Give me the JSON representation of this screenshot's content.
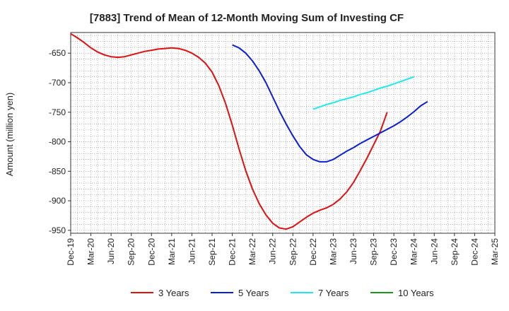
{
  "chart_data": {
    "type": "line",
    "title": "[7883]  Trend of Mean of 12-Month Moving Sum of Investing CF",
    "xlabel": "",
    "ylabel": "Amount (million yen)",
    "ylim": [
      -955,
      -615
    ],
    "yticks": [
      -650,
      -700,
      -750,
      -800,
      -850,
      -900,
      -950
    ],
    "x_tick_labels": [
      "Dec-19",
      "Mar-20",
      "Jun-20",
      "Sep-20",
      "Dec-20",
      "Mar-21",
      "Jun-21",
      "Sep-21",
      "Dec-21",
      "Mar-22",
      "Jun-22",
      "Sep-22",
      "Dec-22",
      "Mar-23",
      "Jun-23",
      "Sep-23",
      "Dec-23",
      "Mar-24",
      "Jun-24",
      "Sep-24",
      "Dec-24",
      "Mar-25"
    ],
    "grid": true,
    "legend_position": "bottom",
    "series": [
      {
        "name": "3 Years",
        "color": "#e01010",
        "start_index": 0,
        "values": [
          -617,
          -624,
          -632,
          -641,
          -648,
          -653,
          -656,
          -657,
          -656,
          -653,
          -650,
          -647,
          -645,
          -643,
          -642,
          -641,
          -642,
          -645,
          -650,
          -657,
          -667,
          -682,
          -705,
          -735,
          -772,
          -812,
          -849,
          -880,
          -905,
          -924,
          -938,
          -946,
          -948,
          -944,
          -936,
          -928,
          -921,
          -916,
          -912,
          -906,
          -897,
          -885,
          -869,
          -849,
          -828,
          -805,
          -782,
          -750
        ]
      },
      {
        "name": "5 Years",
        "color": "#0a1ed4",
        "start_index": 24,
        "values": [
          -636,
          -641,
          -650,
          -663,
          -680,
          -700,
          -724,
          -748,
          -770,
          -790,
          -808,
          -822,
          -830,
          -834,
          -834,
          -830,
          -823,
          -816,
          -810,
          -803,
          -797,
          -791,
          -785,
          -779,
          -773,
          -766,
          -758,
          -749,
          -739,
          -732
        ]
      },
      {
        "name": "7 Years",
        "color": "#20e8f0",
        "start_index": 36,
        "values": [
          -745,
          -741,
          -737,
          -734,
          -730,
          -727,
          -724,
          -720,
          -717,
          -713,
          -709,
          -706,
          -702,
          -698,
          -694,
          -690
        ]
      },
      {
        "name": "10 Years",
        "color": "#1a9a1a",
        "start_index": 0,
        "values": []
      }
    ]
  }
}
